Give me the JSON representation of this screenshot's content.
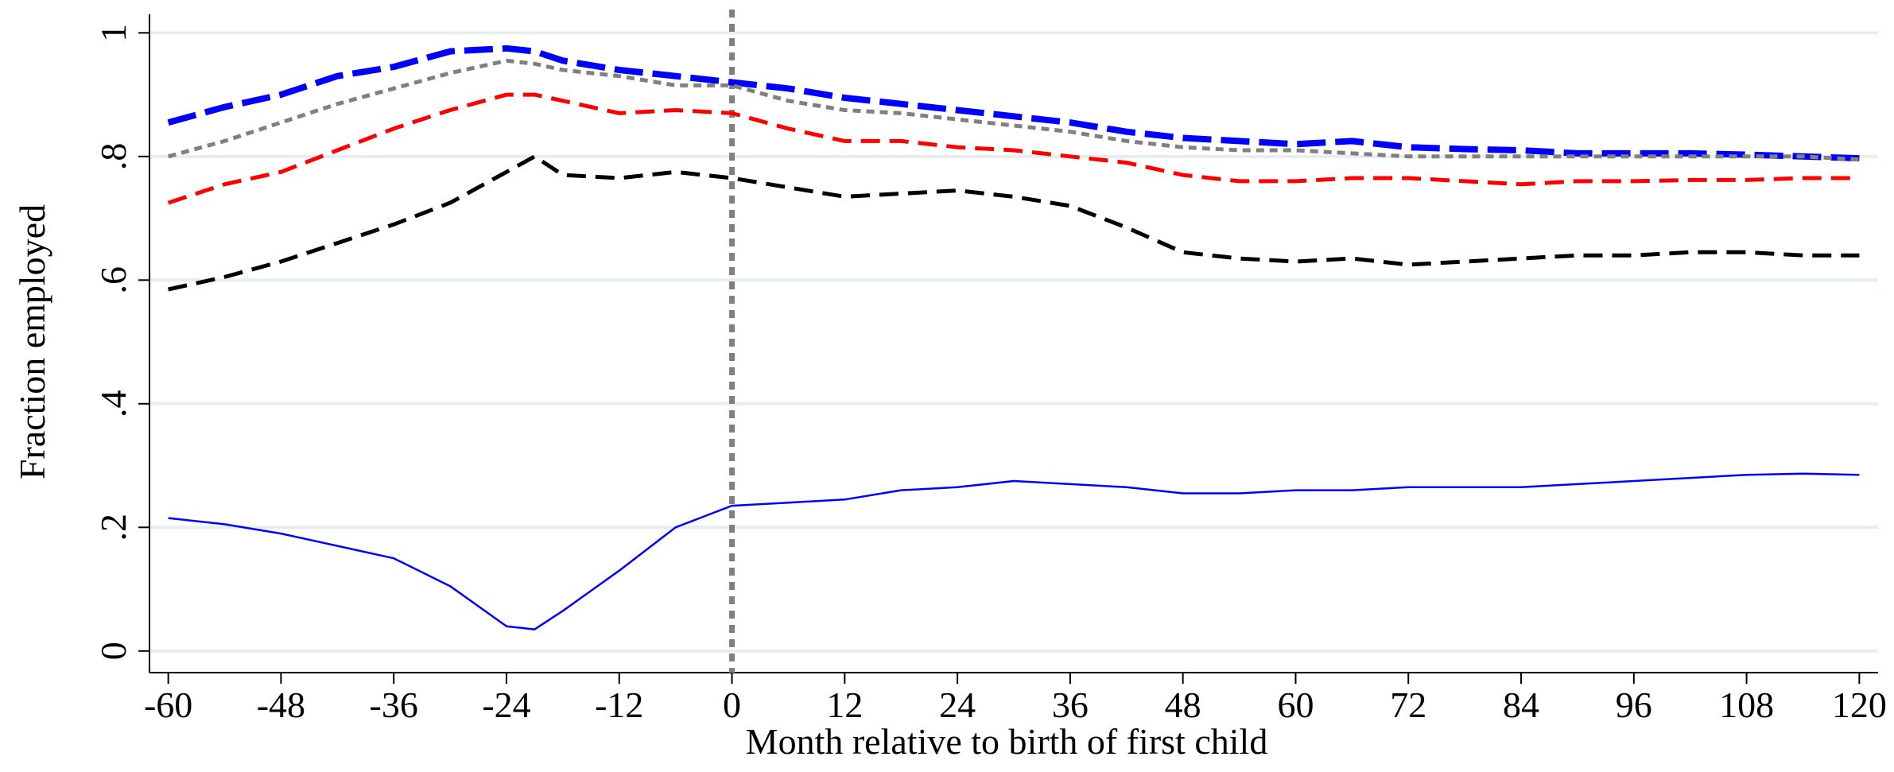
{
  "chart_data": {
    "type": "line",
    "title": "",
    "xlabel": "Month relative to birth of first child",
    "ylabel": "Fraction employed",
    "xlim": [
      -62,
      122
    ],
    "ylim": [
      -0.035,
      1.03
    ],
    "xticks": [
      -60,
      -48,
      -36,
      -24,
      -12,
      0,
      12,
      24,
      36,
      48,
      60,
      72,
      84,
      96,
      108,
      120
    ],
    "xtick_labels": [
      "-60",
      "-48",
      "-36",
      "-24",
      "-12",
      "0",
      "12",
      "24",
      "36",
      "48",
      "60",
      "72",
      "84",
      "96",
      "108",
      "120"
    ],
    "yticks": [
      0,
      0.2,
      0.4,
      0.6,
      0.8,
      1
    ],
    "ytick_labels": [
      "0",
      ".2",
      ".4",
      ".6",
      ".8",
      "1"
    ],
    "grid": "horizontal",
    "reference_line": {
      "x": 0,
      "color": "#808080",
      "style": "dotted"
    },
    "x": [
      -60,
      -54,
      -48,
      -42,
      -36,
      -30,
      -24,
      -21,
      -18,
      -12,
      -6,
      0,
      6,
      12,
      18,
      24,
      30,
      36,
      42,
      48,
      54,
      60,
      66,
      72,
      78,
      84,
      90,
      96,
      102,
      108,
      114,
      120
    ],
    "series": [
      {
        "color": "#0000ff",
        "style": "longdash",
        "values": [
          0.855,
          0.88,
          0.9,
          0.93,
          0.945,
          0.97,
          0.975,
          0.97,
          0.955,
          0.94,
          0.93,
          0.92,
          0.91,
          0.895,
          0.885,
          0.875,
          0.865,
          0.855,
          0.84,
          0.83,
          0.825,
          0.82,
          0.825,
          0.815,
          0.812,
          0.81,
          0.805,
          0.805,
          0.805,
          0.803,
          0.8,
          0.797
        ]
      },
      {
        "color": "#808080",
        "style": "shortdash",
        "values": [
          0.8,
          0.825,
          0.855,
          0.885,
          0.91,
          0.935,
          0.955,
          0.95,
          0.94,
          0.93,
          0.915,
          0.915,
          0.89,
          0.875,
          0.87,
          0.86,
          0.85,
          0.84,
          0.825,
          0.815,
          0.81,
          0.81,
          0.805,
          0.8,
          0.8,
          0.8,
          0.8,
          0.8,
          0.8,
          0.8,
          0.8,
          0.795
        ]
      },
      {
        "color": "#ff0000",
        "style": "dash",
        "values": [
          0.725,
          0.755,
          0.775,
          0.81,
          0.845,
          0.875,
          0.9,
          0.9,
          0.89,
          0.87,
          0.875,
          0.87,
          0.845,
          0.825,
          0.825,
          0.815,
          0.81,
          0.8,
          0.79,
          0.77,
          0.76,
          0.76,
          0.765,
          0.765,
          0.76,
          0.755,
          0.76,
          0.76,
          0.762,
          0.762,
          0.765,
          0.765
        ]
      },
      {
        "color": "#000000",
        "style": "dash",
        "values": [
          0.585,
          0.605,
          0.63,
          0.66,
          0.69,
          0.725,
          0.775,
          0.8,
          0.77,
          0.765,
          0.775,
          0.765,
          0.75,
          0.735,
          0.74,
          0.745,
          0.735,
          0.72,
          0.685,
          0.645,
          0.635,
          0.63,
          0.635,
          0.625,
          0.63,
          0.635,
          0.64,
          0.64,
          0.645,
          0.645,
          0.64,
          0.64
        ]
      },
      {
        "color": "#0000ff",
        "style": "solid",
        "values": [
          0.215,
          0.205,
          0.19,
          0.17,
          0.15,
          0.105,
          0.04,
          0.035,
          0.065,
          0.13,
          0.2,
          0.235,
          0.24,
          0.245,
          0.26,
          0.265,
          0.275,
          0.27,
          0.265,
          0.255,
          0.255,
          0.26,
          0.26,
          0.265,
          0.265,
          0.265,
          0.27,
          0.275,
          0.28,
          0.285,
          0.287,
          0.285
        ]
      }
    ]
  }
}
